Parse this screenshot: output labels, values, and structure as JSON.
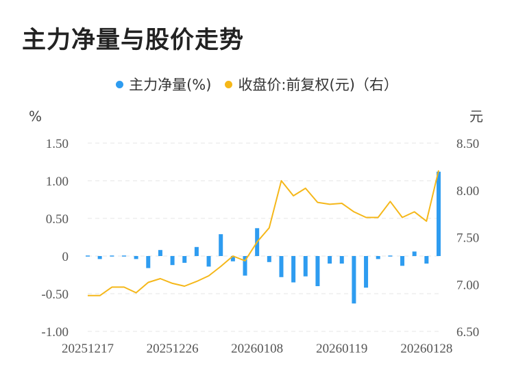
{
  "title": "主力净量与股价走势",
  "legend": [
    {
      "label": "主力净量(%)",
      "color": "#2e9cf0"
    },
    {
      "label": "收盘价:前复权(元)（右）",
      "color": "#f5b719"
    }
  ],
  "chart_data": {
    "type": "bar+line",
    "left_axis": {
      "unit": "%",
      "ticks": [
        "1.50",
        "1.00",
        "0.50",
        "0",
        "-0.50",
        "-1.00"
      ],
      "ylim": [
        -1.0,
        1.5
      ]
    },
    "right_axis": {
      "unit": "元",
      "ticks": [
        "8.50",
        "8.00",
        "7.50",
        "7.00",
        "6.50"
      ],
      "ylim": [
        6.5,
        8.5
      ]
    },
    "x_tick_labels": [
      "20251217",
      "20251226",
      "20260108",
      "20260119",
      "20260128"
    ],
    "x_tick_index": [
      0,
      7,
      14,
      21,
      28
    ],
    "n_points": 30,
    "series": [
      {
        "name": "主力净量(%)",
        "type": "bar",
        "color": "#2e9cf0",
        "values": [
          -0.01,
          -0.04,
          -0.01,
          -0.01,
          -0.04,
          -0.16,
          0.08,
          -0.12,
          -0.09,
          0.12,
          -0.14,
          0.29,
          -0.07,
          -0.26,
          0.37,
          -0.08,
          -0.28,
          -0.35,
          -0.27,
          -0.4,
          -0.1,
          -0.1,
          -0.63,
          -0.42,
          -0.04,
          0.0,
          -0.13,
          0.06,
          -0.1,
          1.12
        ]
      },
      {
        "name": "收盘价:前复权(元)（右）",
        "type": "line",
        "color": "#f5b719",
        "values": [
          6.88,
          6.88,
          6.97,
          6.97,
          6.91,
          7.02,
          7.06,
          7.01,
          6.98,
          7.03,
          7.09,
          7.19,
          7.3,
          7.25,
          7.45,
          7.6,
          8.1,
          7.94,
          8.02,
          7.87,
          7.85,
          7.86,
          7.77,
          7.71,
          7.71,
          7.88,
          7.71,
          7.77,
          7.67,
          8.21
        ]
      }
    ]
  }
}
